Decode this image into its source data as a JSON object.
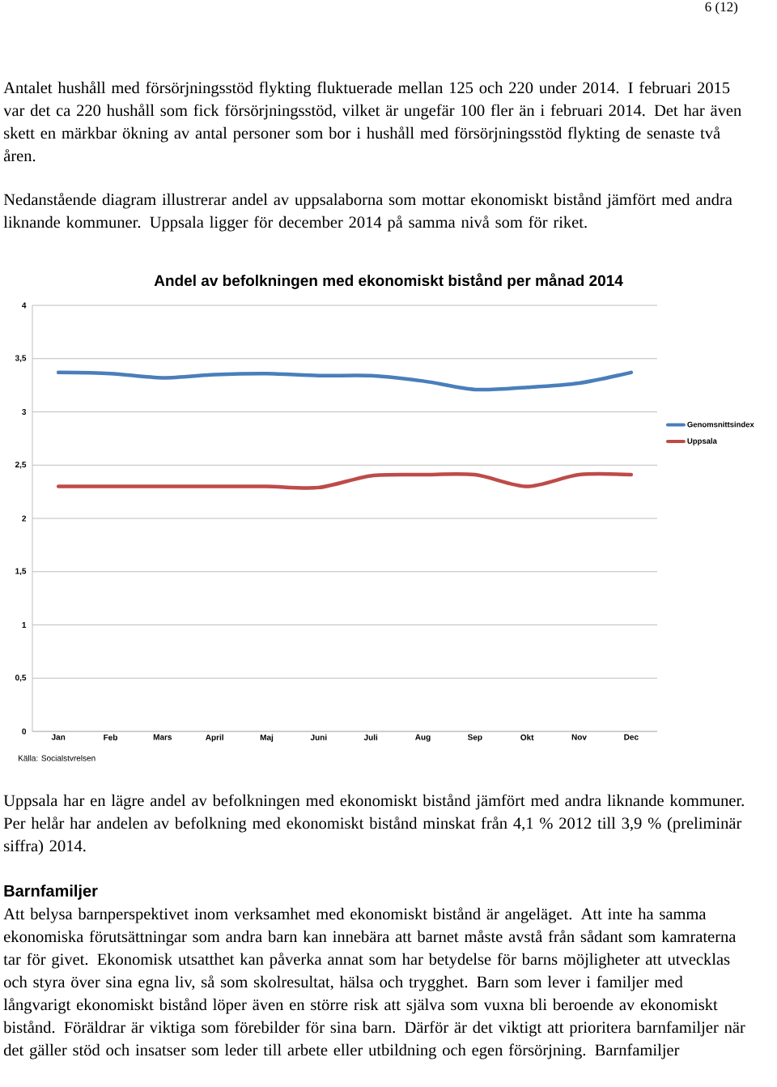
{
  "chart_data": {
    "type": "line",
    "title": "Andel av befolkningen med ekonomiskt bistånd per månad 2014",
    "categories": [
      "Jan",
      "Feb",
      "Mars",
      "April",
      "Maj",
      "Juni",
      "Juli",
      "Aug",
      "Sep",
      "Okt",
      "Nov",
      "Dec"
    ],
    "series": [
      {
        "name": "Genomsnittsindex",
        "color": "#4a7ebb",
        "values": [
          3.37,
          3.36,
          3.32,
          3.35,
          3.36,
          3.34,
          3.34,
          3.29,
          3.21,
          3.23,
          3.27,
          3.37
        ]
      },
      {
        "name": "Uppsala",
        "color": "#be4b48",
        "values": [
          2.3,
          2.3,
          2.3,
          2.3,
          2.3,
          2.29,
          2.4,
          2.41,
          2.41,
          2.3,
          2.41,
          2.41
        ]
      }
    ],
    "ylim": [
      0,
      4
    ],
    "yticks": [
      0,
      {
        "value": 0.5,
        "label": "0,5"
      },
      1,
      {
        "value": 1.5,
        "label": "1,5"
      },
      2,
      {
        "value": 2.5,
        "label": "2,5"
      },
      3,
      {
        "value": 3.5,
        "label": "3,5"
      },
      4
    ],
    "grid": "y",
    "legend": "right",
    "marker": "none",
    "line_style": "solid",
    "annotations": [
      "6 (12)",
      "Antalet hushåll med försörjningsstöd flykting fluktuerade mellan 125 och 220 under 2014. I februari 2015 var det ca 220 hushåll som fick försörjningsstöd, vilket är ungefär 100 fler än i februari 2014. Det har även skett en märkbar ökning av antal personer som bor i hushåll med försörjningsstöd flykting de senaste två åren.",
      "Nedanstående diagram illustrerar andel av uppsalaborna som mottar ekonomiskt bistånd jämfört med andra liknande kommuner. Uppsala ligger för december 2014 på samma nivå som för riket.",
      "Källa: Socialstvrelsen",
      "Uppsala har en lägre andel av befolkningen med ekonomiskt bistånd jämfört med andra liknande kommuner. Per helår har andelen av befolkning med ekonomiskt bistånd minskat från 4,1 % 2012 till 3,9 % (preliminär siffra) 2014.",
      "Barnfamiljer",
      "Att belysa barnperspektivet inom verksamhet med ekonomiskt bistånd är angeläget. Att inte ha samma ekonomiska förutsättningar som andra barn kan innebära att barnet måste avstå från sådant som kamraterna tar för givet. Ekonomisk utsatthet kan påverka annat som har betydelse för barns möjligheter att utvecklas och styra över sina egna liv, så som skolresultat, hälsa och trygghet. Barn som lever i familjer med långvarigt ekonomiskt bistånd löper även en större risk att själva som vuxna bli beroende av ekonomiskt bistånd. Föräldrar är viktiga som förebilder för sina barn. Därför är det viktigt att prioritera barnfamiljer när det gäller stöd och insatser som leder till arbete eller utbildning och egen försörjning. Barnfamiljer"
    ]
  }
}
